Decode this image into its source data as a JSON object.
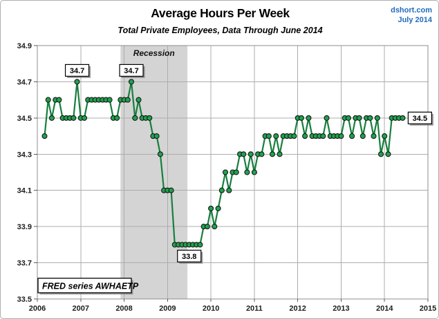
{
  "header": {
    "title": "Average Hours Per Week",
    "subtitle": "Total Private Employees, Data Through June 2014",
    "source": "dshort.com",
    "date": "July 2014"
  },
  "chart_data": {
    "type": "line",
    "title": "Average Hours Per Week",
    "subtitle": "Total Private Employees, Data Through June 2014",
    "series_name": "Average weekly hours, total private employees",
    "x_start": "2006-03",
    "frequency": "monthly",
    "values": [
      34.4,
      34.6,
      34.5,
      34.6,
      34.6,
      34.5,
      34.5,
      34.5,
      34.5,
      34.7,
      34.5,
      34.5,
      34.6,
      34.6,
      34.6,
      34.6,
      34.6,
      34.6,
      34.6,
      34.5,
      34.5,
      34.6,
      34.6,
      34.6,
      34.7,
      34.5,
      34.6,
      34.5,
      34.5,
      34.5,
      34.4,
      34.4,
      34.3,
      34.1,
      34.1,
      34.1,
      33.8,
      33.8,
      33.8,
      33.8,
      33.8,
      33.8,
      33.8,
      33.8,
      33.9,
      33.9,
      34.0,
      33.9,
      34.0,
      34.1,
      34.2,
      34.1,
      34.2,
      34.2,
      34.3,
      34.3,
      34.2,
      34.3,
      34.2,
      34.3,
      34.3,
      34.4,
      34.4,
      34.3,
      34.4,
      34.3,
      34.4,
      34.4,
      34.4,
      34.4,
      34.5,
      34.5,
      34.4,
      34.5,
      34.4,
      34.4,
      34.4,
      34.4,
      34.5,
      34.4,
      34.4,
      34.4,
      34.4,
      34.5,
      34.5,
      34.4,
      34.5,
      34.5,
      34.4,
      34.5,
      34.5,
      34.4,
      34.5,
      34.3,
      34.4,
      34.3,
      34.5,
      34.5,
      34.5,
      34.5
    ],
    "ylim": [
      33.5,
      34.9
    ],
    "xlim": [
      2006,
      2015
    ],
    "y_ticks": [
      33.5,
      33.7,
      33.9,
      34.1,
      34.3,
      34.5,
      34.7,
      34.9
    ],
    "x_ticks": [
      2006,
      2007,
      2008,
      2009,
      2010,
      2011,
      2012,
      2013,
      2014,
      2015
    ],
    "grid": true,
    "line_color": "#177f3d",
    "marker_color": "#1fa14d",
    "marker_edge_color": "#191919",
    "grid_color": "#acacac",
    "border_color": "#8c8c8c",
    "tick_label_color": "#1c1c1c",
    "recession_band": {
      "start": "2007-12",
      "end": "2009-06",
      "label": "Recession",
      "color": "#d4d4d4"
    },
    "annotations": [
      {
        "text": "34.7",
        "month": "2006-12",
        "value": 34.7,
        "position": "above"
      },
      {
        "text": "34.7",
        "month": "2008-03",
        "value": 34.7,
        "position": "above"
      },
      {
        "text": "33.8",
        "month": "2009-07",
        "value": 33.8,
        "position": "below"
      },
      {
        "text": "34.5",
        "month": "2014-06",
        "value": 34.5,
        "position": "right"
      }
    ],
    "series_box_label": "FRED series AWHAETP"
  }
}
